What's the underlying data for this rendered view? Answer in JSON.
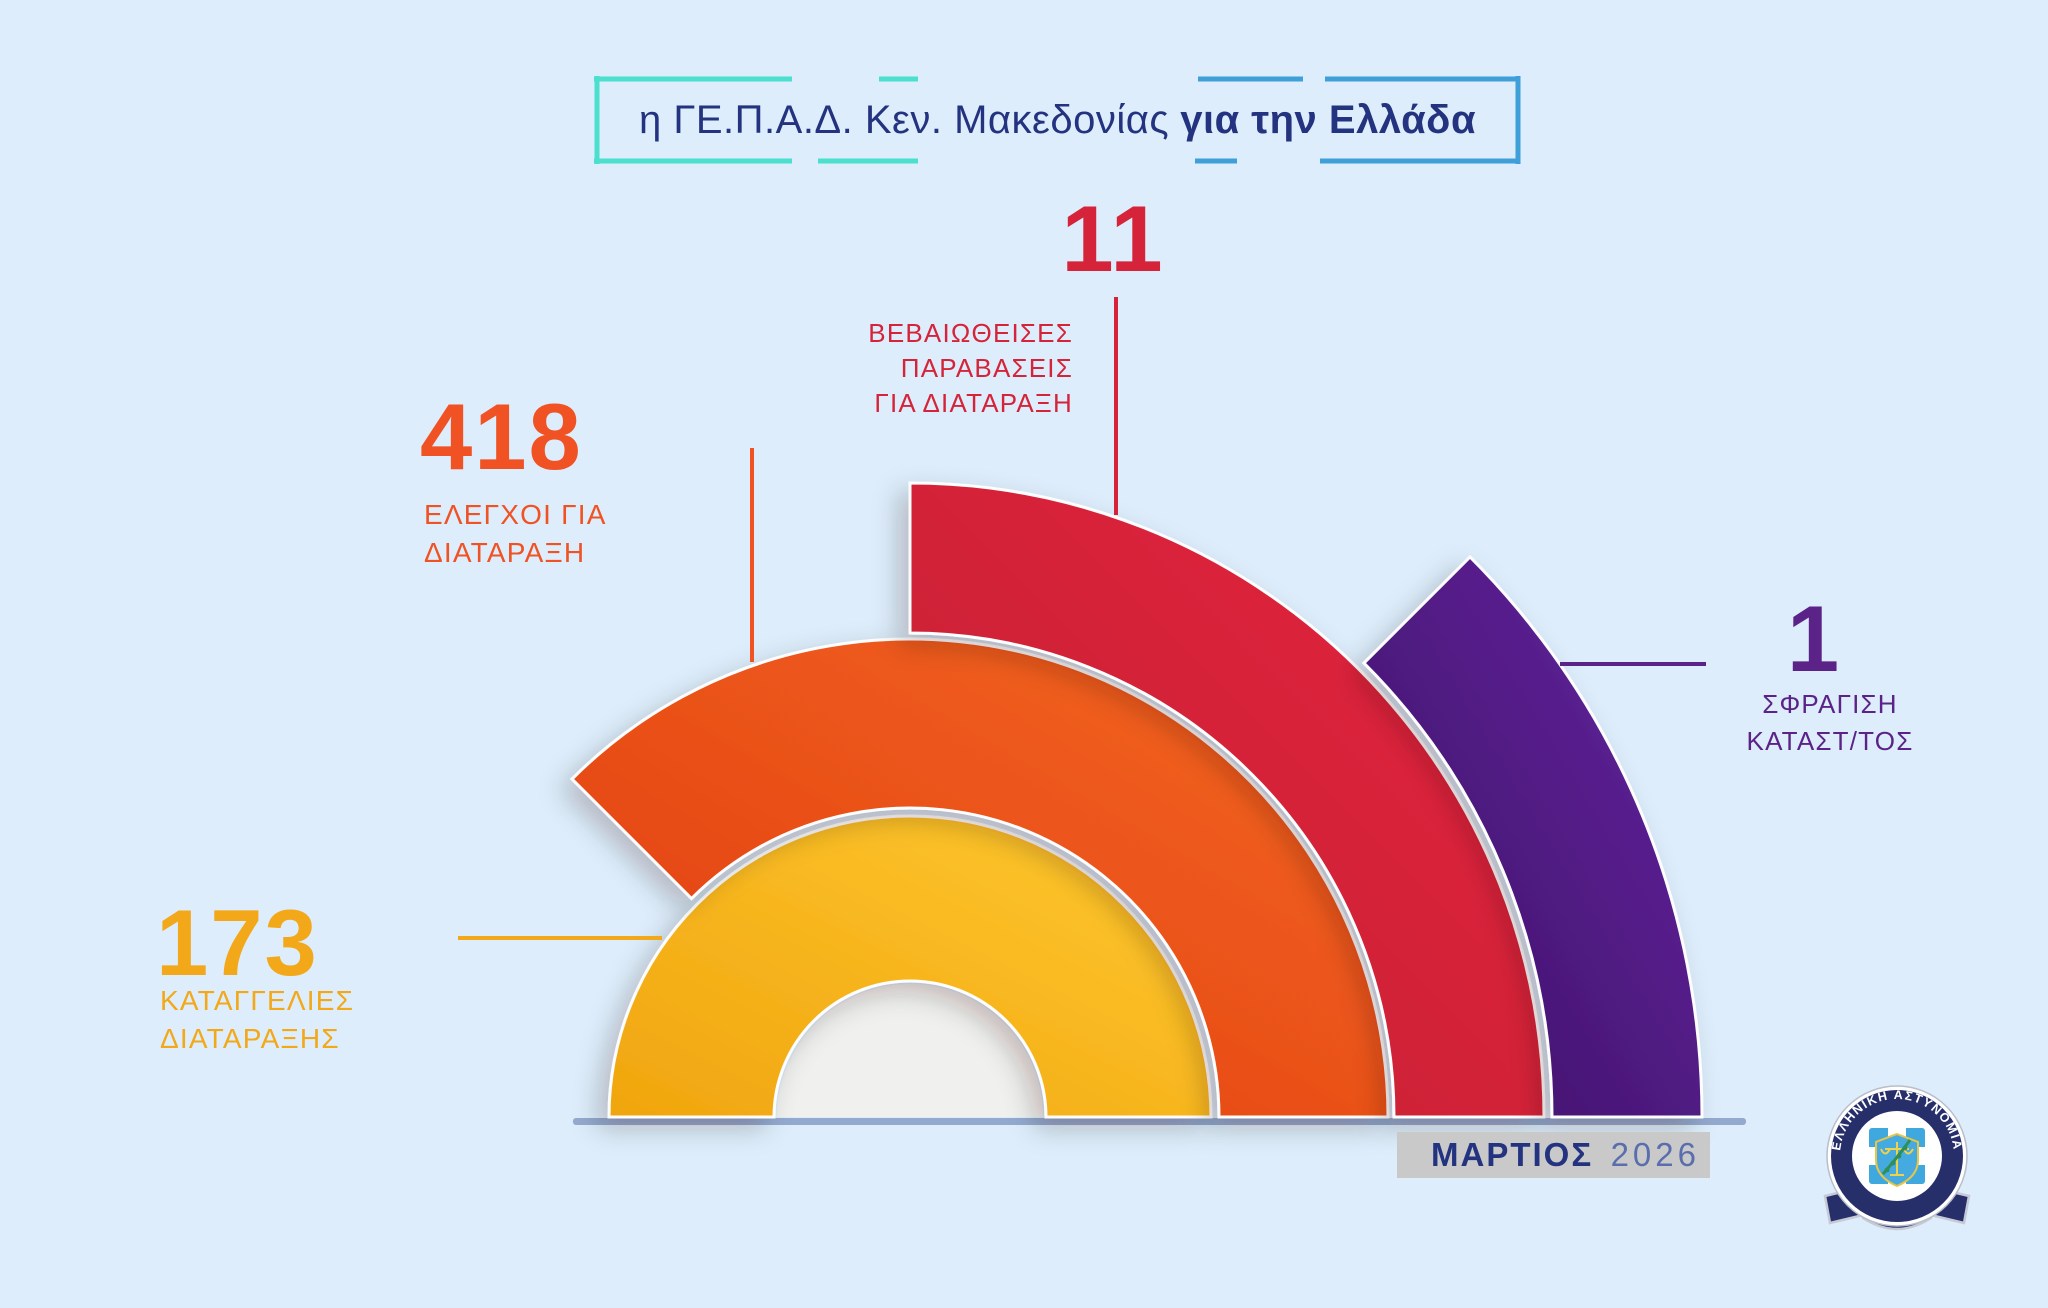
{
  "colors": {
    "background": "#DDEDFB",
    "navy": "#24337F",
    "teal": "#4BE0CE",
    "bracket_blue": "#3E9FD9",
    "baseline": "#93A9CE",
    "disc": "#F0F0EE",
    "yellow": "#F2A818",
    "orange": "#F05223",
    "red": "#D5243A",
    "purple": "#5B2387",
    "date_box_bg": "#C9C9C9",
    "year_text": "#5A6EAE"
  },
  "title": {
    "prefix": "η ΓΕ.Π.Α.Δ. Κεν. Μακεδονίας",
    "highlight": "για την Ελλάδα"
  },
  "stats": {
    "complaints": {
      "value": "173",
      "line1": "ΚΑΤΑΓΓΕΛΙΕΣ",
      "line2": "ΔΙΑΤΑΡΑΞΗΣ"
    },
    "checks": {
      "value": "418",
      "line1": "ΕΛΕΓΧΟΙ ΓΙΑ",
      "line2": "ΔΙΑΤΑΡΑΞΗ"
    },
    "violations": {
      "value": "11",
      "line1": "ΒΕΒΑΙΩΘΕΙΣΕΣ",
      "line2": "ΠΑΡΑΒΑΣΕΙΣ",
      "line3": "ΓΙΑ ΔΙΑΤΑΡΑΞΗ"
    },
    "sealing": {
      "value": "1",
      "line1": "ΣΦΡΑΓΙΣΗ",
      "line2": "ΚΑΤΑΣΤ/ΤΟΣ"
    }
  },
  "date": {
    "month": "ΜΑΡΤΙΟΣ",
    "year": "2026"
  },
  "logo": {
    "ring_text": "ΕΛΛΗΝΙΚΗ ΑΣΤΥΝΟΜΙΑ"
  },
  "chart_data": {
    "type": "pie",
    "variant": "half-radial-fan",
    "title": "η ΓΕ.Π.Α.Δ. Κεν. Μακεδονίας για την Ελλάδα",
    "period": "ΜΑΡΤΙΟΣ 2026",
    "legend_position": "around-arcs",
    "items": [
      {
        "label": "ΚΑΤΑΓΓΕΛΙΕΣ ΔΙΑΤΑΡΑΞΗΣ",
        "value": 173,
        "sweep_deg": 180,
        "color": "#F2A818",
        "fill_from": "#F0A50E",
        "fill_to": "#FFC830"
      },
      {
        "label": "ΕΛΕΓΧΟΙ ΓΙΑ ΔΙΑΤΑΡΑΞΗ",
        "value": 418,
        "sweep_deg": 135,
        "color": "#F05223",
        "fill_from": "#E03D13",
        "fill_to": "#F4661F"
      },
      {
        "label": "ΒΕΒΑΙΩΘΕΙΣΕΣ ΠΑΡΑΒΑΣΕΙΣ ΓΙΑ ΔΙΑΤΑΡΑΞΗ",
        "value": 11,
        "sweep_deg": 90,
        "color": "#D5243A",
        "fill_from": "#BE1B31",
        "fill_to": "#E8283F"
      },
      {
        "label": "ΣΦΡΑΓΙΣΗ ΚΑΤΑΣΤ/ΤΟΣ",
        "value": 1,
        "sweep_deg": 45,
        "color": "#5B2387",
        "fill_from": "#3B0F64",
        "fill_to": "#6527A1"
      }
    ]
  }
}
